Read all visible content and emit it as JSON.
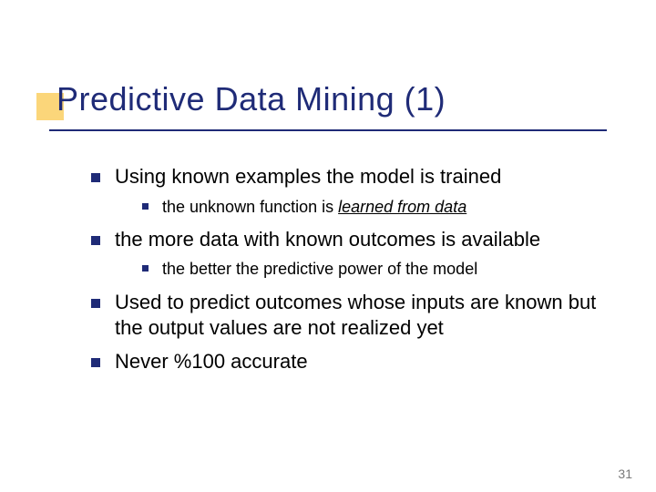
{
  "slide": {
    "title": "Predictive Data Mining (1)",
    "title_color": "#1f2b77",
    "title_fontsize": 36,
    "accent_box_color": "#fbd67a",
    "underline_color": "#1f2b77",
    "background_color": "#ffffff",
    "page_number": "31",
    "bullets": [
      {
        "text": "Using known examples the model is trained",
        "children": [
          {
            "prefix": "the unknown function is ",
            "emph": "learned from data"
          }
        ]
      },
      {
        "text": "the more data with known outcomes is available",
        "children": [
          {
            "prefix": "the better the predictive power of the model",
            "emph": ""
          }
        ]
      },
      {
        "text": "Used to predict outcomes whose inputs are known but the output values are not realized yet",
        "children": []
      },
      {
        "text": "Never %100 accurate",
        "children": []
      }
    ],
    "body_fontsize_l1": 22,
    "body_fontsize_l2": 18,
    "bullet_color": "#1f2b77"
  }
}
